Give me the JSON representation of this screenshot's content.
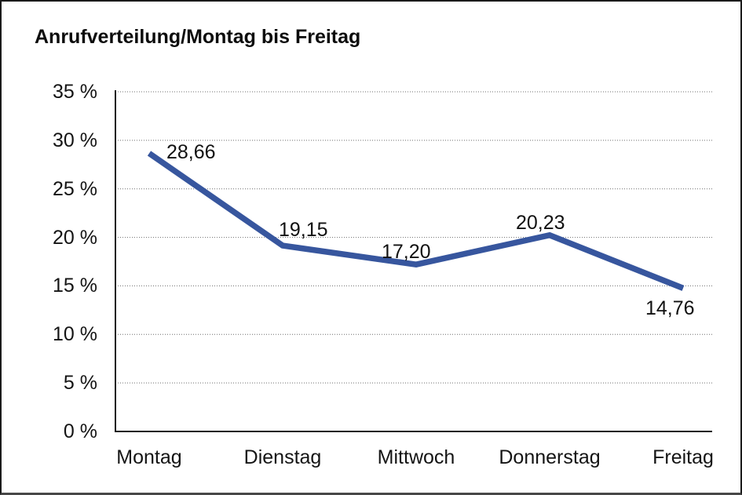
{
  "window": {
    "background": "#ffffff",
    "frame_border_color": "#1b1b1b"
  },
  "chart_data": {
    "type": "line",
    "title": "Anrufverteilung/Montag bis Freitag",
    "categories": [
      "Montag",
      "Dienstag",
      "Mittwoch",
      "Donnerstag",
      "Freitag"
    ],
    "values": [
      28.66,
      19.15,
      17.2,
      20.23,
      14.76
    ],
    "data_labels": [
      "28,66",
      "19,15",
      "17,20",
      "20,23",
      "14,76"
    ],
    "series_name": "Anrufverteilung",
    "xlabel": "",
    "ylabel": "",
    "ylim": [
      0,
      35
    ],
    "y_tick_values": [
      35,
      30,
      25,
      20,
      15,
      10,
      5,
      0
    ],
    "y_ticks": [
      "35 %",
      "30 %",
      "25 %",
      "20 %",
      "15 %",
      "10 %",
      "5 %",
      "0 %"
    ],
    "grid": "horizontal-dotted",
    "legend": "none",
    "line_color": "#37569E",
    "grid_color": "#6f6f6f",
    "axis_color": "#1a1a1a",
    "title_color": "#0c0c0c"
  }
}
